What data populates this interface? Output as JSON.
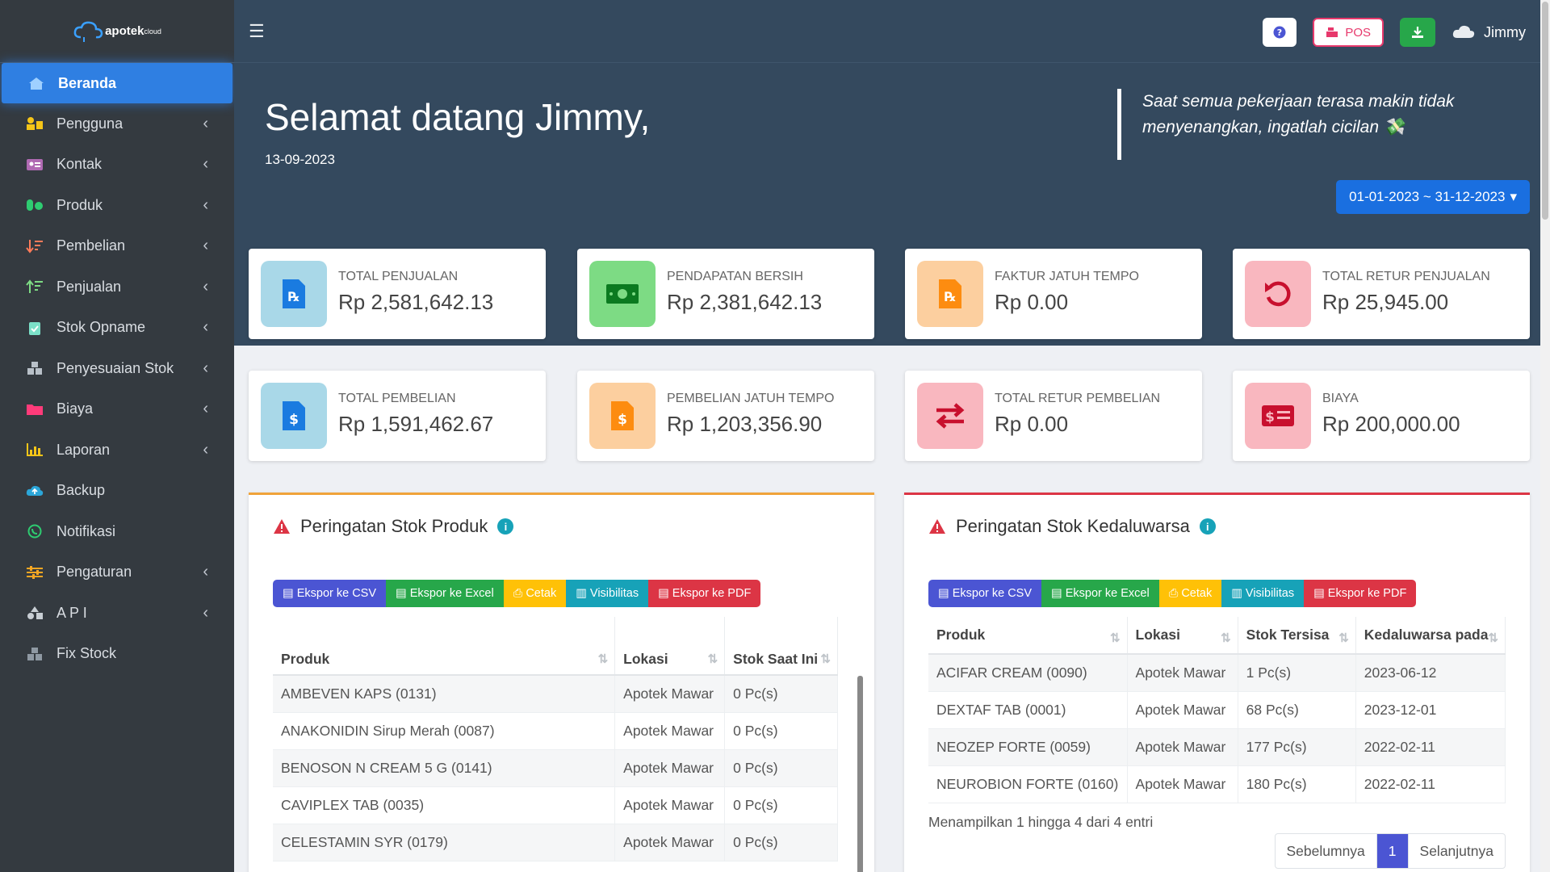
{
  "brand": {
    "name": "apotek",
    "sup": "cloud"
  },
  "sidebar": {
    "items": [
      {
        "label": "Beranda",
        "icon": "home-icon",
        "active": true,
        "chevron": false
      },
      {
        "label": "Pengguna",
        "icon": "users-icon",
        "chevron": true
      },
      {
        "label": "Kontak",
        "icon": "contact-card-icon",
        "chevron": true
      },
      {
        "label": "Produk",
        "icon": "pills-icon",
        "chevron": true
      },
      {
        "label": "Pembelian",
        "icon": "sort-down-icon",
        "chevron": true
      },
      {
        "label": "Penjualan",
        "icon": "sort-up-icon",
        "chevron": true
      },
      {
        "label": "Stok Opname",
        "icon": "clipboard-check-icon",
        "chevron": true
      },
      {
        "label": "Penyesuaian Stok",
        "icon": "boxes-icon",
        "chevron": true
      },
      {
        "label": "Biaya",
        "icon": "folder-icon",
        "chevron": true
      },
      {
        "label": "Laporan",
        "icon": "chart-icon",
        "chevron": true
      },
      {
        "label": "Backup",
        "icon": "cloud-upload-icon",
        "chevron": false
      },
      {
        "label": "Notifikasi",
        "icon": "whatsapp-icon",
        "chevron": false
      },
      {
        "label": "Pengaturan",
        "icon": "sliders-icon",
        "chevron": true
      },
      {
        "label": "A P I",
        "icon": "shapes-icon",
        "chevron": true
      },
      {
        "label": "Fix Stock",
        "icon": "cubes-icon",
        "chevron": false
      }
    ],
    "chevron_glyph": "‹"
  },
  "topbar": {
    "menu_glyph": "☰",
    "pos_label": "POS",
    "user_name": "Jimmy"
  },
  "hero": {
    "greeting": "Selamat datang Jimmy,",
    "date": "13-09-2023",
    "quote": "Saat semua pekerjaan terasa makin tidak menyenangkan, ingatlah cicilan 💸",
    "date_range": "01-01-2023 ~ 31-12-2023"
  },
  "stats": [
    {
      "title": "TOTAL PENJUALAN",
      "value": "Rp 2,581,642.13",
      "color": "#a9d8e8",
      "icon": "prescription-file-icon"
    },
    {
      "title": "PENDAPATAN BERSIH",
      "value": "Rp 2,381,642.13",
      "color": "#7ddb84",
      "icon": "money-bill-icon"
    },
    {
      "title": "FAKTUR JATUH TEMPO",
      "value": "Rp 0.00",
      "color": "#fccf9f",
      "icon": "prescription-file-icon"
    },
    {
      "title": "TOTAL RETUR PENJUALAN",
      "value": "Rp 25,945.00",
      "color": "#f9b7bf",
      "icon": "undo-icon"
    },
    {
      "title": "TOTAL PEMBELIAN",
      "value": "Rp 1,591,462.67",
      "color": "#a9d8e8",
      "icon": "dollar-file-icon"
    },
    {
      "title": "PEMBELIAN JATUH TEMPO",
      "value": "Rp 1,203,356.90",
      "color": "#fccf9f",
      "icon": "dollar-file-icon"
    },
    {
      "title": "TOTAL RETUR PEMBELIAN",
      "value": "Rp 0.00",
      "color": "#f9b7bf",
      "icon": "exchange-icon"
    },
    {
      "title": "BIAYA",
      "value": "Rp 200,000.00",
      "color": "#f9b7bf",
      "icon": "money-check-icon"
    }
  ],
  "exports": {
    "csv": "Ekspor ke CSV",
    "excel": "Ekspor ke Excel",
    "print": "Cetak",
    "vis": "Visibilitas",
    "pdf": "Ekspor ke PDF"
  },
  "stock_panel": {
    "title": "Peringatan Stok Produk",
    "columns": [
      "Produk",
      "Lokasi",
      "Stok Saat Ini"
    ],
    "rows": [
      [
        "AMBEVEN KAPS (0131)",
        "Apotek Mawar",
        "0 Pc(s)"
      ],
      [
        "ANAKONIDIN Sirup Merah (0087)",
        "Apotek Mawar",
        "0 Pc(s)"
      ],
      [
        "BENOSON N CREAM 5 G (0141)",
        "Apotek Mawar",
        "0 Pc(s)"
      ],
      [
        "CAVIPLEX TAB (0035)",
        "Apotek Mawar",
        "0 Pc(s)"
      ],
      [
        "CELESTAMIN SYR (0179)",
        "Apotek Mawar",
        "0 Pc(s)"
      ]
    ]
  },
  "expiry_panel": {
    "title": "Peringatan Stok Kedaluwarsa",
    "columns": [
      "Produk",
      "Lokasi",
      "Stok Tersisa",
      "Kedaluwarsa pada"
    ],
    "rows": [
      [
        "ACIFAR CREAM (0090)",
        "Apotek Mawar",
        "1 Pc(s)",
        "2023-06-12"
      ],
      [
        "DEXTAF TAB (0001)",
        "Apotek Mawar",
        "68 Pc(s)",
        "2023-12-01"
      ],
      [
        "NEOZEP FORTE (0059)",
        "Apotek Mawar",
        "177 Pc(s)",
        "2022-02-11"
      ],
      [
        "NEUROBION FORTE (0160)",
        "Apotek Mawar",
        "180 Pc(s)",
        "2022-02-11"
      ]
    ],
    "info": "Menampilkan 1 hingga 4 dari 4 entri",
    "pager": {
      "prev": "Sebelumnya",
      "current": "1",
      "next": "Selanjutnya"
    }
  }
}
